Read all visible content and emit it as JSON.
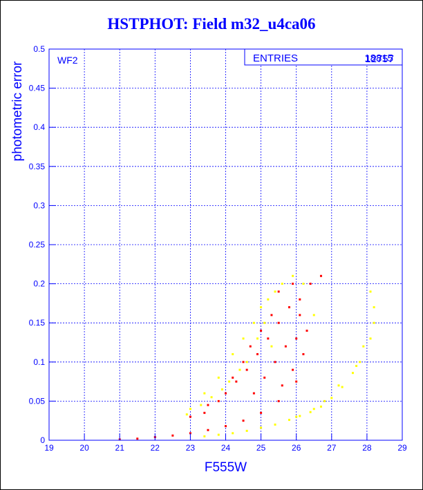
{
  "title": "HSTPHOT: Field m32_u4ca06",
  "panel_label": "WF2",
  "stats_box": {
    "label": "ENTRIES",
    "values": [
      "18815",
      "12757"
    ]
  },
  "colors": {
    "frame": "#0000ff",
    "series_a": "#ffff00",
    "series_b": "#ff0000"
  },
  "chart_data": {
    "type": "scatter",
    "xlabel": "F555W",
    "ylabel": "photometric error",
    "xlim": [
      19,
      29
    ],
    "ylim": [
      0,
      0.5
    ],
    "grid": true,
    "x_ticks": [
      "19",
      "20",
      "21",
      "22",
      "23",
      "24",
      "25",
      "26",
      "27",
      "28",
      "29"
    ],
    "y_ticks": [
      "0",
      "0.05",
      "0.1",
      "0.15",
      "0.2",
      "0.25",
      "0.3",
      "0.35",
      "0.4",
      "0.45",
      "0.5"
    ],
    "series": [
      {
        "color": "#ffff00",
        "points": [
          [
            23.4,
            0.005
          ],
          [
            23.8,
            0.007
          ],
          [
            24.2,
            0.009
          ],
          [
            24.6,
            0.012
          ],
          [
            25.0,
            0.016
          ],
          [
            25.4,
            0.02
          ],
          [
            25.8,
            0.026
          ],
          [
            26.1,
            0.031
          ],
          [
            26.4,
            0.036
          ],
          [
            26.7,
            0.043
          ],
          [
            27.0,
            0.054
          ],
          [
            27.3,
            0.068
          ],
          [
            27.6,
            0.086
          ],
          [
            27.7,
            0.095
          ],
          [
            23.0,
            0.04
          ],
          [
            23.4,
            0.06
          ],
          [
            23.8,
            0.08
          ],
          [
            24.2,
            0.11
          ],
          [
            24.5,
            0.13
          ],
          [
            24.8,
            0.15
          ],
          [
            25.0,
            0.17
          ],
          [
            25.2,
            0.18
          ],
          [
            25.4,
            0.19
          ],
          [
            25.6,
            0.2
          ],
          [
            25.9,
            0.21
          ],
          [
            26.2,
            0.2
          ],
          [
            26.5,
            0.16
          ],
          [
            24.9,
            0.13
          ],
          [
            25.1,
            0.15
          ],
          [
            25.3,
            0.12
          ],
          [
            24.6,
            0.1
          ],
          [
            24.4,
            0.09
          ],
          [
            24.1,
            0.075
          ],
          [
            23.9,
            0.065
          ],
          [
            23.6,
            0.055
          ],
          [
            23.3,
            0.045
          ],
          [
            22.9,
            0.033
          ],
          [
            28.1,
            0.19
          ],
          [
            28.2,
            0.17
          ],
          [
            28.2,
            0.15
          ],
          [
            28.1,
            0.13
          ],
          [
            27.9,
            0.12
          ],
          [
            27.8,
            0.1
          ],
          [
            27.2,
            0.07
          ],
          [
            26.8,
            0.05
          ],
          [
            26.5,
            0.04
          ],
          [
            26.0,
            0.03
          ]
        ]
      },
      {
        "color": "#ff0000",
        "points": [
          [
            21.0,
            0.001
          ],
          [
            21.5,
            0.002
          ],
          [
            22.0,
            0.004
          ],
          [
            22.5,
            0.006
          ],
          [
            23.0,
            0.009
          ],
          [
            23.5,
            0.013
          ],
          [
            24.0,
            0.018
          ],
          [
            24.5,
            0.025
          ],
          [
            25.0,
            0.035
          ],
          [
            25.5,
            0.05
          ],
          [
            26.0,
            0.075
          ],
          [
            23.0,
            0.03
          ],
          [
            23.5,
            0.045
          ],
          [
            24.0,
            0.06
          ],
          [
            24.3,
            0.075
          ],
          [
            24.6,
            0.09
          ],
          [
            24.9,
            0.11
          ],
          [
            25.2,
            0.13
          ],
          [
            25.5,
            0.15
          ],
          [
            25.8,
            0.17
          ],
          [
            26.1,
            0.18
          ],
          [
            26.4,
            0.2
          ],
          [
            26.7,
            0.21
          ],
          [
            24.8,
            0.06
          ],
          [
            25.1,
            0.08
          ],
          [
            25.4,
            0.1
          ],
          [
            25.7,
            0.12
          ],
          [
            26.0,
            0.13
          ],
          [
            25.3,
            0.16
          ],
          [
            25.0,
            0.14
          ],
          [
            24.7,
            0.12
          ],
          [
            24.5,
            0.1
          ],
          [
            24.2,
            0.08
          ],
          [
            23.8,
            0.05
          ],
          [
            23.4,
            0.035
          ],
          [
            25.6,
            0.07
          ],
          [
            25.9,
            0.09
          ],
          [
            26.2,
            0.11
          ],
          [
            26.3,
            0.14
          ],
          [
            25.5,
            0.19
          ],
          [
            25.9,
            0.2
          ],
          [
            26.1,
            0.16
          ]
        ]
      }
    ]
  }
}
